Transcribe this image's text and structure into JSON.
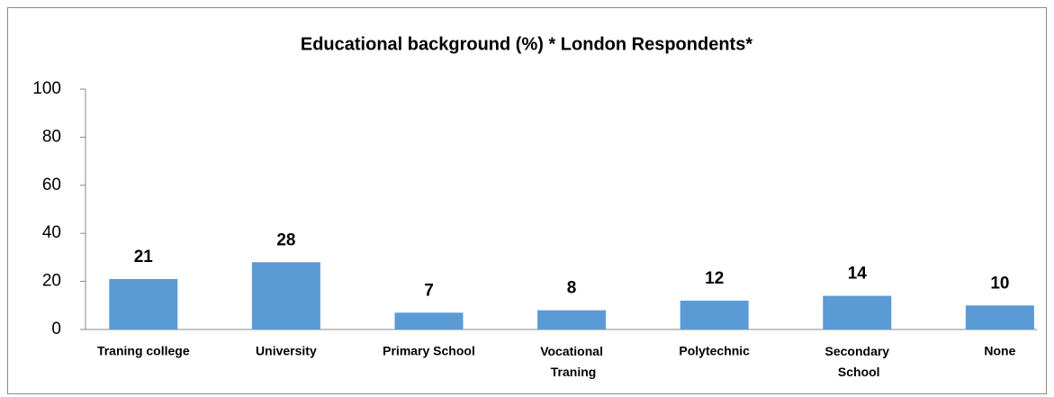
{
  "chart_data": {
    "type": "bar",
    "title": "Educational background  (%) * London Respondents*",
    "categories": [
      "Traning college",
      "University",
      "Primary School",
      "Vocational Traning",
      "Polytechnic",
      "Secondary School",
      "None"
    ],
    "values": [
      21,
      28,
      7,
      8,
      12,
      14,
      10
    ],
    "color": "#5b9bd5",
    "ylim": [
      0,
      100
    ],
    "yticks": [
      0,
      20,
      40,
      60,
      80,
      100
    ],
    "grid": false
  }
}
